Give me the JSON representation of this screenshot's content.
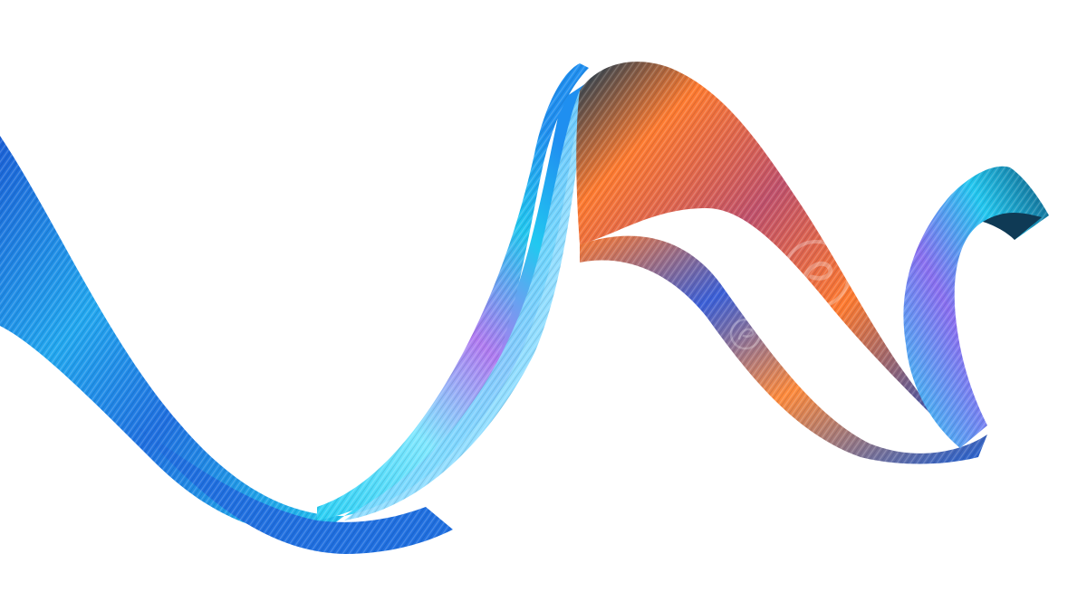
{
  "image": {
    "subject": "iridescent-ribbon",
    "background_color": "#ffffff",
    "palette": {
      "deep_blue": "#1b5fd6",
      "cyan": "#22c8f0",
      "light_cyan": "#7fe8ff",
      "violet": "#b07af0",
      "orange": "#ff7a2e",
      "dark_teal": "#0f3a55"
    },
    "watermark": {
      "icon": "watermark-logo-icon"
    }
  }
}
